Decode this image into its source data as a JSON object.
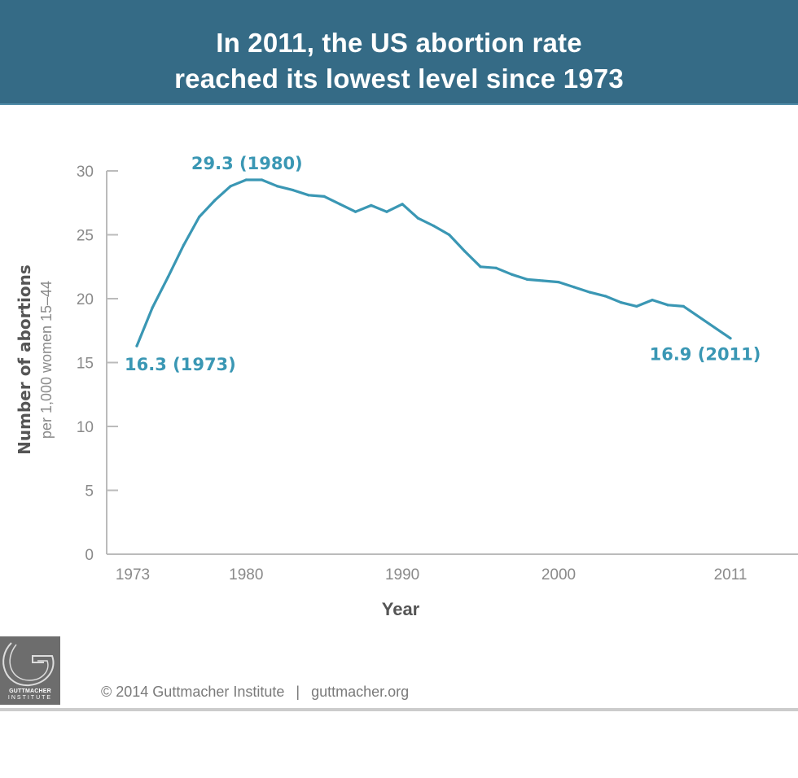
{
  "header": {
    "title_line1": "In 2011, the US abortion rate",
    "title_line2": "reached its lowest level since 1973"
  },
  "chart_data": {
    "type": "line",
    "title": "In 2011, the US abortion rate reached its lowest level since 1973",
    "xlabel": "Year",
    "ylabel": "Number of abortions",
    "ylabel_sub": "per 1,000 women 15–44",
    "xlim": [
      1973,
      2011
    ],
    "ylim": [
      0,
      30
    ],
    "grid": false,
    "x_ticks": [
      1973,
      1980,
      1990,
      2000,
      2011
    ],
    "x_tick_labels": [
      "1973",
      "1980",
      "1990",
      "2000",
      "2011"
    ],
    "y_ticks": [
      0,
      5,
      10,
      15,
      20,
      25,
      30
    ],
    "y_tick_labels": [
      "0",
      "5",
      "10",
      "15",
      "20",
      "25",
      "30"
    ],
    "series": [
      {
        "name": "Abortion rate",
        "color": "#3a97b4",
        "x": [
          1973,
          1974,
          1975,
          1976,
          1977,
          1978,
          1979,
          1980,
          1981,
          1982,
          1983,
          1984,
          1985,
          1986,
          1987,
          1988,
          1989,
          1990,
          1991,
          1992,
          1993,
          1994,
          1995,
          1996,
          1997,
          1998,
          1999,
          2000,
          2001,
          2002,
          2003,
          2004,
          2005,
          2006,
          2007,
          2008,
          2011
        ],
        "values": [
          16.3,
          19.3,
          21.7,
          24.2,
          26.4,
          27.7,
          28.8,
          29.3,
          29.3,
          28.8,
          28.5,
          28.1,
          28.0,
          27.4,
          26.8,
          27.3,
          26.8,
          27.4,
          26.3,
          25.7,
          25.0,
          23.7,
          22.5,
          22.4,
          21.9,
          21.5,
          21.4,
          21.3,
          20.9,
          20.5,
          20.2,
          19.7,
          19.4,
          19.9,
          19.5,
          19.4,
          16.9
        ]
      }
    ],
    "annotations": [
      {
        "text": "16.3 (1973)",
        "x": 1973,
        "y": 16.3,
        "position": "below-right"
      },
      {
        "text": "29.3 (1980)",
        "x": 1980,
        "y": 29.3,
        "position": "above"
      },
      {
        "text": "16.9 (2011)",
        "x": 2011,
        "y": 16.9,
        "position": "below"
      }
    ]
  },
  "footer": {
    "copyright": "© 2014 Guttmacher Institute",
    "separator": "|",
    "website": "guttmacher.org",
    "logo_text_line1": "GUTTMACHER",
    "logo_text_line2": "INSTITUTE"
  },
  "colors": {
    "header_bg": "#356b86",
    "line": "#3a97b4",
    "axis": "#bbbbbb"
  }
}
